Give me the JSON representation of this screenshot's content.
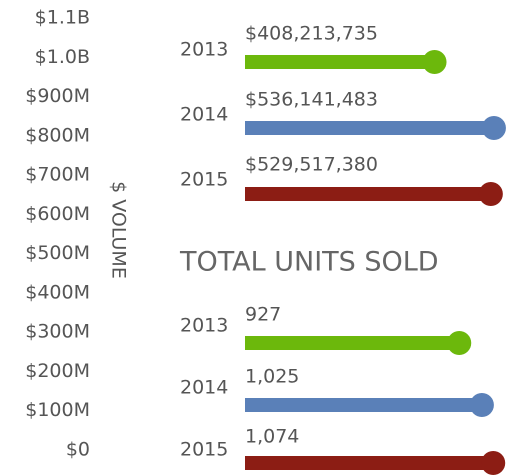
{
  "chart_data": [
    {
      "type": "lollipop",
      "ylabel": "$ VOLUME",
      "ylim": [
        0,
        1100000000
      ],
      "yticks": [
        {
          "value": 0,
          "label": "$0"
        },
        {
          "value": 100000000,
          "label": "$100M"
        },
        {
          "value": 200000000,
          "label": "$200M"
        },
        {
          "value": 300000000,
          "label": "$300M"
        },
        {
          "value": 400000000,
          "label": "$400M"
        },
        {
          "value": 500000000,
          "label": "$500M"
        },
        {
          "value": 600000000,
          "label": "$600M"
        },
        {
          "value": 700000000,
          "label": "$700M"
        },
        {
          "value": 800000000,
          "label": "$800M"
        },
        {
          "value": 900000000,
          "label": "$900M"
        },
        {
          "value": 1000000000,
          "label": "$1.0B"
        },
        {
          "value": 1100000000,
          "label": "$1.1B"
        }
      ],
      "categories": [
        "2013",
        "2014",
        "2015"
      ],
      "values": [
        408213735,
        536141483,
        529517380
      ],
      "value_labels": [
        "$408,213,735",
        "$536,141,483",
        "$529,517,380"
      ],
      "colors": [
        "#6cb80c",
        "#5a80b8",
        "#8c1d14"
      ],
      "xlim": [
        0,
        560000000
      ]
    },
    {
      "type": "lollipop",
      "title": "TOTAL UNITS SOLD",
      "categories": [
        "2013",
        "2014",
        "2015"
      ],
      "values": [
        927,
        1025,
        1074
      ],
      "value_labels": [
        "927",
        "1,025",
        "1,074"
      ],
      "colors": [
        "#6cb80c",
        "#5a80b8",
        "#8c1d14"
      ],
      "xlim": [
        0,
        1125
      ]
    }
  ]
}
